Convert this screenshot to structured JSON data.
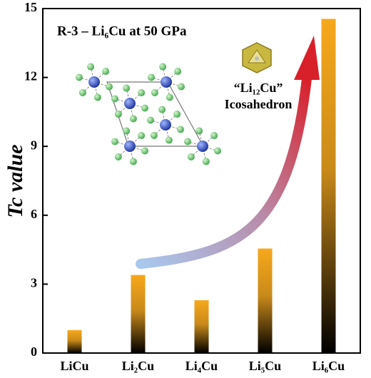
{
  "chart_data": {
    "type": "bar",
    "annotations": [
      "R-3 – Li₆Cu at 50 GPa",
      "“Li₁₂Cu”",
      "Icosahedron"
    ],
    "ylabel": "Tc value",
    "categories": [
      "LiCu",
      "Li₂Cu",
      "Li₄Cu",
      "Li₅Cu",
      "Li₆Cu"
    ],
    "values": [
      1.0,
      3.4,
      2.3,
      4.55,
      14.55
    ],
    "color": "#f7a81b",
    "ylim": [
      0,
      15
    ],
    "yticks": [
      0,
      3,
      6,
      9,
      12,
      15
    ]
  }
}
